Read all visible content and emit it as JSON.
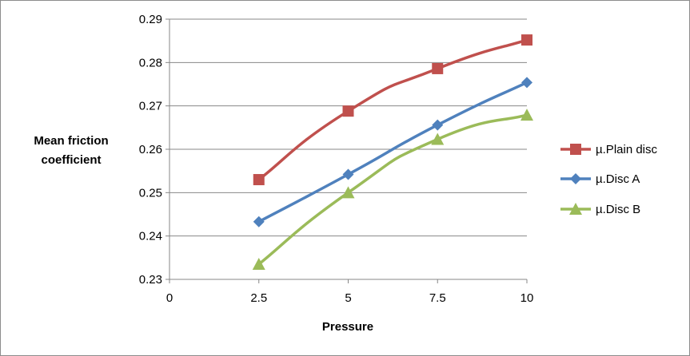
{
  "chart_data": {
    "type": "line",
    "title": "",
    "xlabel": "Pressure",
    "ylabel_lines": [
      "Mean friction",
      "coefficient"
    ],
    "x": [
      2.5,
      5,
      7.5,
      10
    ],
    "xlim": [
      0,
      10
    ],
    "xticks": [
      "0",
      "2.5",
      "5",
      "7.5",
      "10"
    ],
    "ylim": [
      0.23,
      0.29
    ],
    "yticks": [
      "0.23",
      "0.24",
      "0.25",
      "0.26",
      "0.27",
      "0.28",
      "0.29"
    ],
    "grid": "horizontal",
    "legend_position": "right",
    "series": [
      {
        "name": "µ.Plain disc",
        "values": [
          0.253,
          0.2688,
          0.2786,
          0.2852
        ],
        "color": "#c0504d",
        "marker": "square"
      },
      {
        "name": "µ.Disc A",
        "values": [
          0.2433,
          0.2542,
          0.2656,
          0.2754
        ],
        "color": "#4f81bd",
        "marker": "diamond"
      },
      {
        "name": "µ.Disc B",
        "values": [
          0.2335,
          0.25,
          0.2623,
          0.2679
        ],
        "color": "#9bbb59",
        "marker": "triangle"
      }
    ]
  }
}
